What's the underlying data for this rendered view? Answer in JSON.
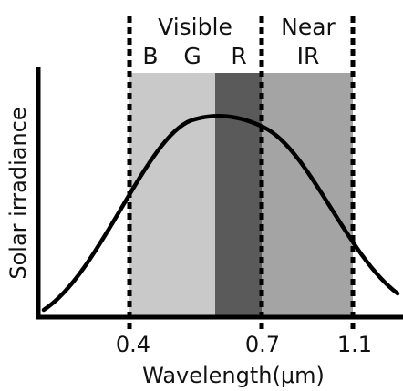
{
  "bands": {
    "visible_label": "Visible",
    "near_ir_label_1": "Near",
    "near_ir_label_2": "IR",
    "b_label": "B",
    "g_label": "G",
    "r_label": "R"
  },
  "axes": {
    "ylabel": "Solar irradiance",
    "xlabel": "Wavelength(μm)",
    "xticks": [
      "0.4",
      "0.7",
      "1.1"
    ]
  },
  "chart_data": {
    "type": "area",
    "xlabel": "Wavelength(μm)",
    "ylabel": "Solar irradiance",
    "regions": [
      {
        "name": "B",
        "start": 0.4,
        "end": 0.5
      },
      {
        "name": "G",
        "start": 0.5,
        "end": 0.6
      },
      {
        "name": "R",
        "start": 0.6,
        "end": 0.7
      },
      {
        "name": "Near IR",
        "start": 0.7,
        "end": 1.1
      }
    ],
    "boundaries": [
      0.4,
      0.7,
      1.1
    ],
    "curve": "bell-shaped solar irradiance curve peaking near the red band"
  },
  "colors": {
    "band_light": "#c9c9c9",
    "band_red": "#5a5a5a",
    "band_near_ir": "#a4a4a4",
    "line": "#000000"
  }
}
